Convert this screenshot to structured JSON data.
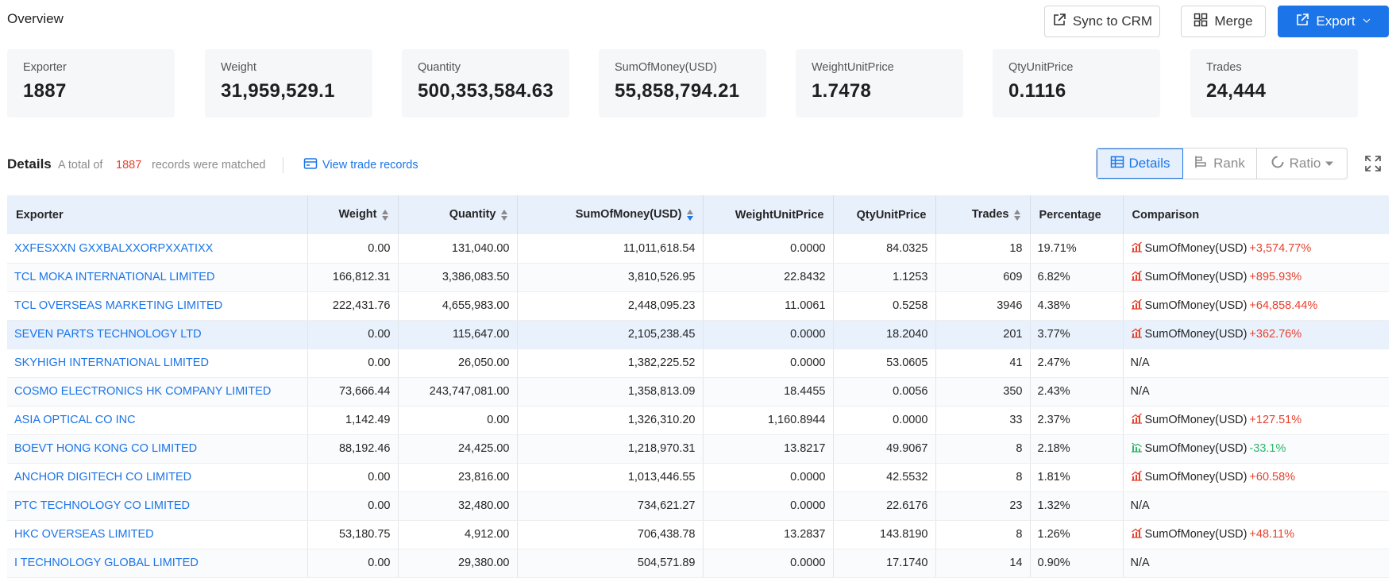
{
  "header": {
    "title": "Overview",
    "sync_label": "Sync to CRM",
    "merge_label": "Merge",
    "export_label": "Export"
  },
  "summary_cards": [
    {
      "label": "Exporter",
      "value": "1887"
    },
    {
      "label": "Weight",
      "value": "31,959,529.1"
    },
    {
      "label": "Quantity",
      "value": "500,353,584.63"
    },
    {
      "label": "SumOfMoney(USD)",
      "value": "55,858,794.21"
    },
    {
      "label": "WeightUnitPrice",
      "value": "1.7478"
    },
    {
      "label": "QtyUnitPrice",
      "value": "0.1116"
    },
    {
      "label": "Trades",
      "value": "24,444"
    }
  ],
  "details": {
    "title": "Details",
    "prefix": "A total of",
    "count": "1887",
    "suffix": "records were matched",
    "view_link": "View trade records",
    "views": {
      "details": "Details",
      "rank": "Rank",
      "ratio": "Ratio"
    }
  },
  "colors": {
    "accent": "#1b75e8",
    "positive": "#e8412d",
    "negative": "#2db86a",
    "header_bg": "#e8f0fc"
  },
  "table": {
    "columns": [
      "Exporter",
      "Weight",
      "Quantity",
      "SumOfMoney(USD)",
      "WeightUnitPrice",
      "QtyUnitPrice",
      "Trades",
      "Percentage",
      "Comparison"
    ],
    "rows": [
      {
        "exporter": "XXFESXXN GXXBALXXORPXXATIXX",
        "weight": "0.00",
        "quantity": "131,040.00",
        "sum": "11,011,618.54",
        "wup": "0.0000",
        "qup": "84.0325",
        "trades": "18",
        "pct": "19.71%",
        "cmp_label": "SumOfMoney(USD)",
        "cmp_value": "+3,574.77%",
        "trend": "up"
      },
      {
        "exporter": "TCL MOKA INTERNATIONAL LIMITED",
        "weight": "166,812.31",
        "quantity": "3,386,083.50",
        "sum": "3,810,526.95",
        "wup": "22.8432",
        "qup": "1.1253",
        "trades": "609",
        "pct": "6.82%",
        "cmp_label": "SumOfMoney(USD)",
        "cmp_value": "+895.93%",
        "trend": "up"
      },
      {
        "exporter": "TCL OVERSEAS MARKETING LIMITED",
        "weight": "222,431.76",
        "quantity": "4,655,983.00",
        "sum": "2,448,095.23",
        "wup": "11.0061",
        "qup": "0.5258",
        "trades": "3946",
        "pct": "4.38%",
        "cmp_label": "SumOfMoney(USD)",
        "cmp_value": "+64,858.44%",
        "trend": "up"
      },
      {
        "exporter": "SEVEN PARTS TECHNOLOGY LTD",
        "weight": "0.00",
        "quantity": "115,647.00",
        "sum": "2,105,238.45",
        "wup": "0.0000",
        "qup": "18.2040",
        "trades": "201",
        "pct": "3.77%",
        "cmp_label": "SumOfMoney(USD)",
        "cmp_value": "+362.76%",
        "trend": "up"
      },
      {
        "exporter": "SKYHIGH INTERNATIONAL LIMITED",
        "weight": "0.00",
        "quantity": "26,050.00",
        "sum": "1,382,225.52",
        "wup": "0.0000",
        "qup": "53.0605",
        "trades": "41",
        "pct": "2.47%",
        "cmp_na": "N/A"
      },
      {
        "exporter": "COSMO ELECTRONICS HK COMPANY LIMITED",
        "weight": "73,666.44",
        "quantity": "243,747,081.00",
        "sum": "1,358,813.09",
        "wup": "18.4455",
        "qup": "0.0056",
        "trades": "350",
        "pct": "2.43%",
        "cmp_na": "N/A"
      },
      {
        "exporter": "ASIA OPTICAL CO INC",
        "weight": "1,142.49",
        "quantity": "0.00",
        "sum": "1,326,310.20",
        "wup": "1,160.8944",
        "qup": "0.0000",
        "trades": "33",
        "pct": "2.37%",
        "cmp_label": "SumOfMoney(USD)",
        "cmp_value": "+127.51%",
        "trend": "up"
      },
      {
        "exporter": "BOEVT HONG KONG CO LIMITED",
        "weight": "88,192.46",
        "quantity": "24,425.00",
        "sum": "1,218,970.31",
        "wup": "13.8217",
        "qup": "49.9067",
        "trades": "8",
        "pct": "2.18%",
        "cmp_label": "SumOfMoney(USD)",
        "cmp_value": "-33.1%",
        "trend": "down"
      },
      {
        "exporter": "ANCHOR DIGITECH CO LIMITED",
        "weight": "0.00",
        "quantity": "23,816.00",
        "sum": "1,013,446.55",
        "wup": "0.0000",
        "qup": "42.5532",
        "trades": "8",
        "pct": "1.81%",
        "cmp_label": "SumOfMoney(USD)",
        "cmp_value": "+60.58%",
        "trend": "up"
      },
      {
        "exporter": "PTC TECHNOLOGY CO LIMITED",
        "weight": "0.00",
        "quantity": "32,480.00",
        "sum": "734,621.27",
        "wup": "0.0000",
        "qup": "22.6176",
        "trades": "23",
        "pct": "1.32%",
        "cmp_na": "N/A"
      },
      {
        "exporter": "HKC OVERSEAS LIMITED",
        "weight": "53,180.75",
        "quantity": "4,912.00",
        "sum": "706,438.78",
        "wup": "13.2837",
        "qup": "143.8190",
        "trades": "8",
        "pct": "1.26%",
        "cmp_label": "SumOfMoney(USD)",
        "cmp_value": "+48.11%",
        "trend": "up"
      },
      {
        "exporter": "I TECHNOLOGY GLOBAL LIMITED",
        "weight": "0.00",
        "quantity": "29,380.00",
        "sum": "504,571.89",
        "wup": "0.0000",
        "qup": "17.1740",
        "trades": "14",
        "pct": "0.90%",
        "cmp_na": "N/A"
      }
    ]
  }
}
